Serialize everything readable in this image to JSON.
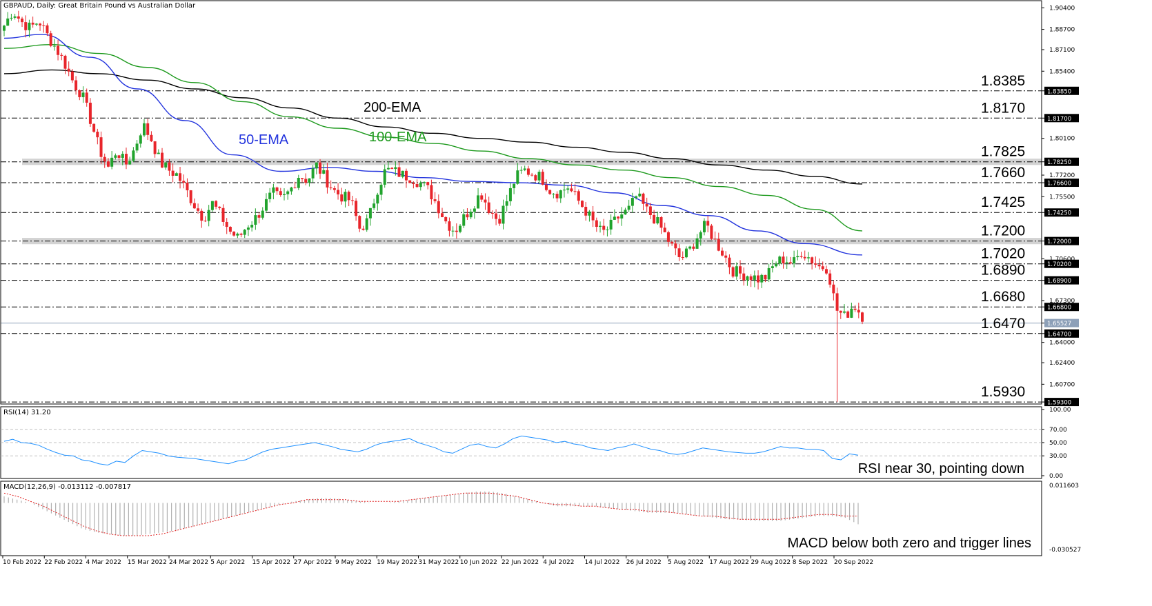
{
  "header": {
    "price_title": "GBPAUD, Daily:  Great Britain Pound vs Australian Dollar",
    "rsi_title": "RSI(14) 31.20",
    "macd_title": "MACD(12,26,9) -0.013112 -0.007817"
  },
  "annotations": {
    "rsi_note": "RSI near 30, pointing down",
    "macd_note": "MACD below both zero and trigger lines"
  },
  "ema_labels": {
    "ema200": "200-EMA",
    "ema100": "100-EMA",
    "ema50": "50-EMA"
  },
  "colors": {
    "up_candle": "#21a32d",
    "down_candle": "#e8252b",
    "ema50": "#2233dd",
    "ema100": "#1e9a1e",
    "ema200": "#000000",
    "rsi_line": "#1e90ff",
    "macd_signal": "#e02020",
    "macd_hist": "#b0b0b0",
    "zone": "#d3d3d3"
  },
  "chart_data": [
    {
      "type": "candlestick",
      "title": "GBPAUD, Daily:  Great Britain Pound vs Australian Dollar",
      "ylim": [
        1.5925,
        1.908
      ],
      "y_ticks": [
        "1.90400",
        "1.88700",
        "1.87100",
        "1.85400",
        "1.83850",
        "1.81700",
        "1.80100",
        "1.78250",
        "1.77200",
        "1.76600",
        "1.75500",
        "1.74250",
        "1.72000",
        "1.70600",
        "1.70200",
        "1.68900",
        "1.67300",
        "1.66800",
        "1.65527",
        "1.64700",
        "1.64000",
        "1.62400",
        "1.60700",
        "1.59300"
      ],
      "x_ticks": [
        "10 Feb 2022",
        "22 Feb 2022",
        "4 Mar 2022",
        "15 Mar 2022",
        "24 Mar 2022",
        "5 Apr 2022",
        "15 Apr 2022",
        "27 Apr 2022",
        "9 May 2022",
        "19 May 2022",
        "31 May 2022",
        "10 Jun 2022",
        "22 Jun 2022",
        "4 Jul 2022",
        "14 Jul 2022",
        "26 Jul 2022",
        "5 Aug 2022",
        "17 Aug 2022",
        "29 Aug 2022",
        "8 Sep 2022",
        "20 Sep 2022"
      ],
      "current_price": "1.65527",
      "levels": [
        {
          "value": 1.8385,
          "label": "1.8385",
          "box": "1.83850"
        },
        {
          "value": 1.817,
          "label": "1.8170",
          "box": "1.81700"
        },
        {
          "value": 1.7825,
          "label": "1.7825",
          "box": "1.78250"
        },
        {
          "value": 1.766,
          "label": "1.7660",
          "box": "1.76600"
        },
        {
          "value": 1.7425,
          "label": "1.7425",
          "box": "1.74250"
        },
        {
          "value": 1.72,
          "label": "1.7200",
          "box": "1.72000"
        },
        {
          "value": 1.702,
          "label": "1.7020",
          "box": "1.70200"
        },
        {
          "value": 1.689,
          "label": "1.6890",
          "box": "1.68900"
        },
        {
          "value": 1.668,
          "label": "1.6680",
          "box": "1.66800"
        },
        {
          "value": 1.647,
          "label": "1.6470",
          "box": "1.64700"
        },
        {
          "value": 1.593,
          "label": "1.5930",
          "box": "1.59300"
        }
      ],
      "zones": [
        [
          1.78,
          1.785
        ],
        [
          1.7175,
          1.7225
        ]
      ],
      "close_path": [
        1.89,
        1.902,
        1.893,
        1.888,
        1.894,
        1.882,
        1.872,
        1.86,
        1.845,
        1.835,
        1.815,
        1.792,
        1.778,
        1.792,
        1.78,
        1.792,
        1.812,
        1.8,
        1.782,
        1.776,
        1.772,
        1.76,
        1.748,
        1.738,
        1.75,
        1.74,
        1.728,
        1.722,
        1.732,
        1.738,
        1.748,
        1.758,
        1.752,
        1.76,
        1.772,
        1.768,
        1.78,
        1.77,
        1.76,
        1.755,
        1.752,
        1.73,
        1.736,
        1.76,
        1.776,
        1.775,
        1.772,
        1.77,
        1.766,
        1.76,
        1.748,
        1.735,
        1.728,
        1.738,
        1.748,
        1.758,
        1.745,
        1.736,
        1.752,
        1.77,
        1.776,
        1.773,
        1.77,
        1.76,
        1.758,
        1.763,
        1.754,
        1.745,
        1.734,
        1.726,
        1.732,
        1.74,
        1.744,
        1.756,
        1.745,
        1.738,
        1.728,
        1.716,
        1.706,
        1.712,
        1.724,
        1.733,
        1.72,
        1.71,
        1.697,
        1.694,
        1.693,
        1.69,
        1.692,
        1.703,
        1.706,
        1.702,
        1.712,
        1.706,
        1.7,
        1.699,
        1.666,
        1.66,
        1.67,
        1.661
      ],
      "intraday_low_session": {
        "date_index": 232,
        "low": 1.593
      },
      "series": [
        {
          "name": "200-EMA",
          "points": [
            [
              1.852,
              0
            ],
            [
              1.855,
              0.05
            ],
            [
              1.852,
              0.1
            ],
            [
              1.847,
              0.15
            ],
            [
              1.84,
              0.2
            ],
            [
              1.833,
              0.25
            ],
            [
              1.825,
              0.3
            ],
            [
              1.817,
              0.35
            ],
            [
              1.81,
              0.4
            ],
            [
              1.805,
              0.45
            ],
            [
              1.801,
              0.5
            ],
            [
              1.798,
              0.55
            ],
            [
              1.794,
              0.6
            ],
            [
              1.79,
              0.65
            ],
            [
              1.785,
              0.7
            ],
            [
              1.78,
              0.75
            ],
            [
              1.776,
              0.8
            ],
            [
              1.771,
              0.85
            ],
            [
              1.765,
              0.9
            ]
          ]
        },
        {
          "name": "100-EMA",
          "points": [
            [
              1.872,
              0
            ],
            [
              1.875,
              0.05
            ],
            [
              1.868,
              0.1
            ],
            [
              1.857,
              0.15
            ],
            [
              1.845,
              0.2
            ],
            [
              1.83,
              0.25
            ],
            [
              1.818,
              0.3
            ],
            [
              1.809,
              0.35
            ],
            [
              1.802,
              0.4
            ],
            [
              1.797,
              0.45
            ],
            [
              1.791,
              0.5
            ],
            [
              1.785,
              0.55
            ],
            [
              1.78,
              0.6
            ],
            [
              1.776,
              0.65
            ],
            [
              1.77,
              0.7
            ],
            [
              1.763,
              0.75
            ],
            [
              1.756,
              0.8
            ],
            [
              1.745,
              0.85
            ],
            [
              1.728,
              0.9
            ]
          ]
        },
        {
          "name": "50-EMA",
          "points": [
            [
              1.88,
              0
            ],
            [
              1.883,
              0.04
            ],
            [
              1.865,
              0.09
            ],
            [
              1.84,
              0.14
            ],
            [
              1.815,
              0.19
            ],
            [
              1.788,
              0.24
            ],
            [
              1.775,
              0.29
            ],
            [
              1.778,
              0.34
            ],
            [
              1.775,
              0.39
            ],
            [
              1.77,
              0.44
            ],
            [
              1.767,
              0.49
            ],
            [
              1.766,
              0.54
            ],
            [
              1.764,
              0.59
            ],
            [
              1.758,
              0.64
            ],
            [
              1.748,
              0.69
            ],
            [
              1.74,
              0.74
            ],
            [
              1.728,
              0.79
            ],
            [
              1.718,
              0.84
            ],
            [
              1.709,
              0.9
            ]
          ]
        }
      ]
    },
    {
      "type": "line",
      "title": "RSI(14) 31.20",
      "ylim": [
        0,
        100
      ],
      "y_ticks": [
        "100.00",
        "70.00",
        "50.00",
        "30.00",
        "0.00"
      ],
      "reference_lines": [
        70,
        50,
        30
      ],
      "current_value": 31.2,
      "series": [
        {
          "name": "RSI(14)",
          "values": [
            52,
            55,
            50,
            49,
            46,
            40,
            35,
            31,
            30,
            24,
            22,
            18,
            16,
            22,
            20,
            30,
            38,
            36,
            34,
            30,
            28,
            27,
            26,
            24,
            22,
            20,
            18,
            22,
            24,
            30,
            36,
            40,
            42,
            44,
            46,
            48,
            50,
            47,
            44,
            40,
            38,
            36,
            40,
            46,
            50,
            52,
            54,
            56,
            50,
            46,
            42,
            36,
            34,
            40,
            46,
            48,
            44,
            42,
            48,
            56,
            60,
            58,
            56,
            54,
            50,
            52,
            48,
            46,
            42,
            40,
            38,
            42,
            44,
            48,
            44,
            40,
            38,
            34,
            32,
            34,
            38,
            42,
            40,
            38,
            36,
            35,
            34,
            34,
            36,
            40,
            44,
            42,
            42,
            40,
            40,
            38,
            26,
            24,
            33,
            31
          ]
        }
      ]
    },
    {
      "type": "bar",
      "title": "MACD(12,26,9) -0.013112 -0.007817",
      "ylim": [
        -0.030527,
        0.011603
      ],
      "y_ticks": [
        "0.011603",
        "-0.030527"
      ],
      "current_values": {
        "macd": -0.013112,
        "signal": -0.007817
      },
      "series": [
        {
          "name": "MACD",
          "values": [
            0.004,
            0.002,
            0.0,
            -0.004,
            -0.008,
            -0.012,
            -0.016,
            -0.018,
            -0.019,
            -0.02,
            -0.02,
            -0.019,
            -0.018,
            -0.017,
            -0.015,
            -0.013,
            -0.011,
            -0.009,
            -0.007,
            -0.005,
            -0.003,
            -0.001,
            0.001,
            0.002,
            0.003,
            0.003,
            0.002,
            0.001,
            0.0,
            0.0,
            0.001,
            0.002,
            0.003,
            0.004,
            0.005,
            0.006,
            0.007,
            0.007,
            0.006,
            0.004,
            0.002,
            0.0,
            -0.002,
            -0.002,
            -0.002,
            -0.002,
            -0.003,
            -0.004,
            -0.005,
            -0.006,
            -0.006,
            -0.006,
            -0.007,
            -0.008,
            -0.009,
            -0.01,
            -0.01,
            -0.011,
            -0.011,
            -0.011,
            -0.01,
            -0.009,
            -0.008,
            -0.008,
            -0.009,
            -0.013
          ]
        },
        {
          "name": "Signal",
          "values": [
            0.006,
            0.004,
            0.001,
            -0.002,
            -0.006,
            -0.01,
            -0.014,
            -0.017,
            -0.019,
            -0.02,
            -0.02,
            -0.02,
            -0.019,
            -0.017,
            -0.015,
            -0.013,
            -0.011,
            -0.009,
            -0.007,
            -0.005,
            -0.003,
            -0.001,
            0.0,
            0.002,
            0.002,
            0.002,
            0.002,
            0.001,
            0.001,
            0.001,
            0.001,
            0.002,
            0.003,
            0.004,
            0.005,
            0.006,
            0.006,
            0.006,
            0.005,
            0.004,
            0.002,
            0.0,
            -0.001,
            -0.001,
            -0.002,
            -0.002,
            -0.003,
            -0.004,
            -0.004,
            -0.005,
            -0.005,
            -0.006,
            -0.007,
            -0.008,
            -0.008,
            -0.009,
            -0.01,
            -0.01,
            -0.01,
            -0.01,
            -0.009,
            -0.008,
            -0.007,
            -0.007,
            -0.008,
            -0.008
          ]
        }
      ]
    }
  ]
}
